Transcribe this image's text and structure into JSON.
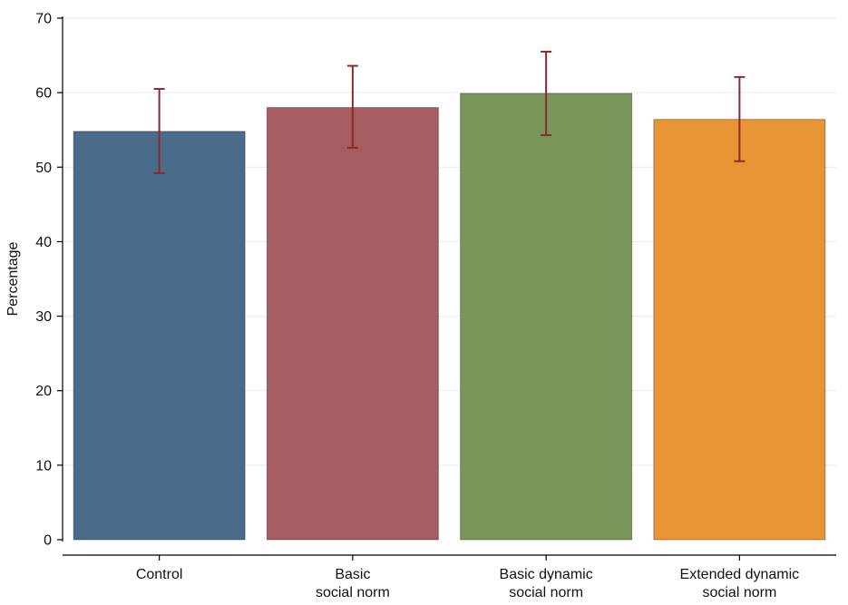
{
  "chart_data": {
    "type": "bar",
    "title": "",
    "xlabel": "",
    "ylabel": "Percentage",
    "ylim": [
      0,
      70
    ],
    "yticks": [
      0,
      10,
      20,
      30,
      40,
      50,
      60,
      70
    ],
    "grid": true,
    "categories": [
      [
        "Control"
      ],
      [
        "Basic",
        "social norm"
      ],
      [
        "Basic dynamic",
        "social norm"
      ],
      [
        "Extended dynamic",
        "social norm"
      ]
    ],
    "values": [
      54.8,
      58.0,
      59.9,
      56.4
    ],
    "error_low": [
      49.2,
      52.6,
      54.3,
      50.8
    ],
    "error_high": [
      60.5,
      63.6,
      65.5,
      62.1
    ],
    "colors": [
      "#4a6b8a",
      "#a65d62",
      "#78965a",
      "#e89536"
    ],
    "error_color": "#8b2a2a"
  }
}
